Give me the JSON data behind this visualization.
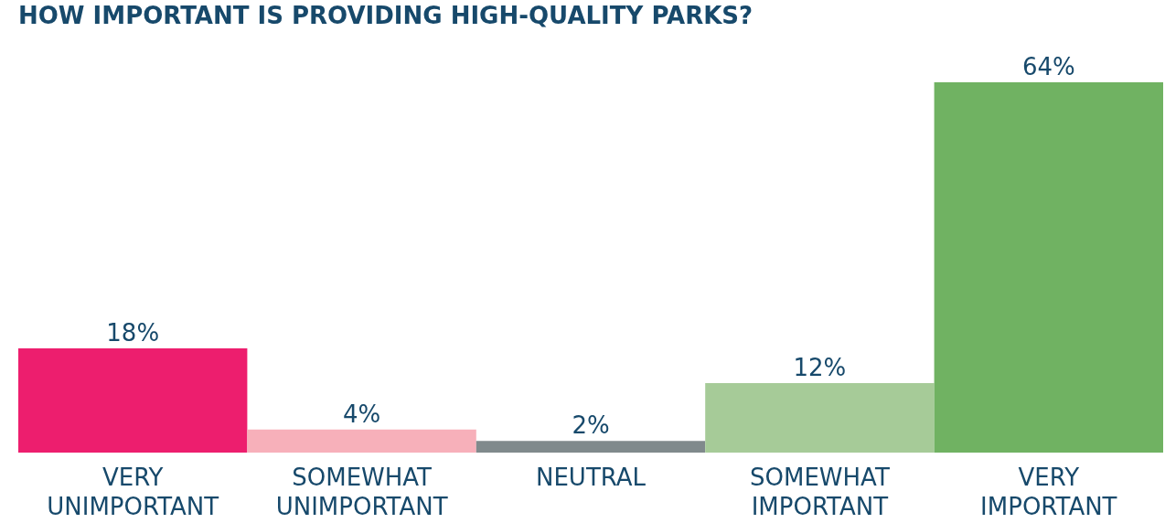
{
  "chart_data": {
    "type": "bar",
    "title": "HOW IMPORTANT IS PROVIDING HIGH-QUALITY PARKS?",
    "categories": [
      "VERY UNIMPORTANT",
      "SOMEWHAT UNIMPORTANT",
      "NEUTRAL",
      "SOMEWHAT IMPORTANT",
      "VERY IMPORTANT"
    ],
    "values": [
      18,
      4,
      2,
      12,
      64
    ],
    "colors": [
      "#ed1e6e",
      "#f7b0ba",
      "#808a8c",
      "#a6cb98",
      "#70b262"
    ],
    "value_labels": [
      "18%",
      "4%",
      "2%",
      "12%",
      "64%"
    ],
    "grid": false
  }
}
